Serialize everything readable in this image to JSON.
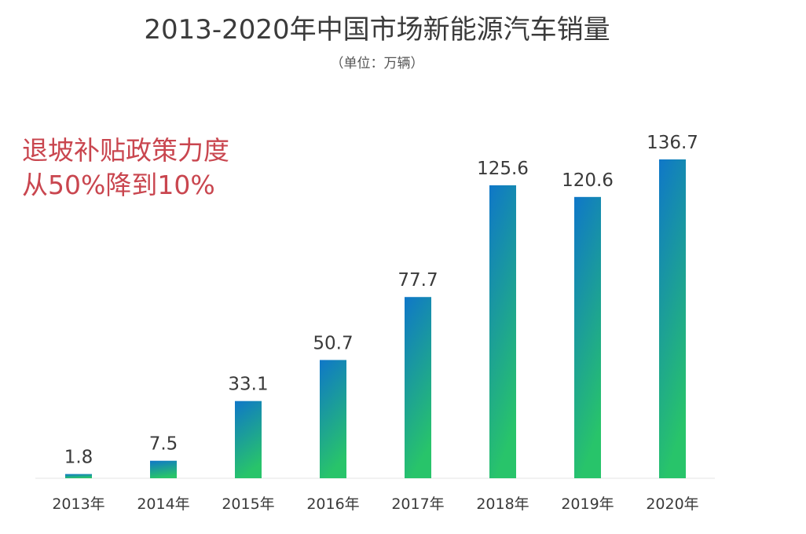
{
  "chart_data": {
    "type": "bar",
    "title": "2013-2020年中国市场新能源汽车销量",
    "subtitle": "（单位：万辆）",
    "xlabel": "",
    "ylabel": "",
    "ylim": [
      0,
      136.7
    ],
    "grid": false,
    "legend": "none",
    "categories": [
      "2013年",
      "2014年",
      "2015年",
      "2016年",
      "2017年",
      "2018年",
      "2019年",
      "2020年"
    ],
    "values": [
      1.8,
      7.5,
      33.1,
      50.7,
      77.7,
      125.6,
      120.6,
      136.7
    ],
    "value_labels": [
      "1.8",
      "7.5",
      "33.1",
      "50.7",
      "77.7",
      "125.6",
      "120.6",
      "136.7"
    ],
    "annotations": [
      "退坡补贴政策力度",
      "从50%降到10%"
    ],
    "colors": {
      "bar_top": "#0f77c8",
      "bar_bottom": "#28c46a",
      "annotation": "#c9464f",
      "axis": "#eeeeee"
    }
  }
}
